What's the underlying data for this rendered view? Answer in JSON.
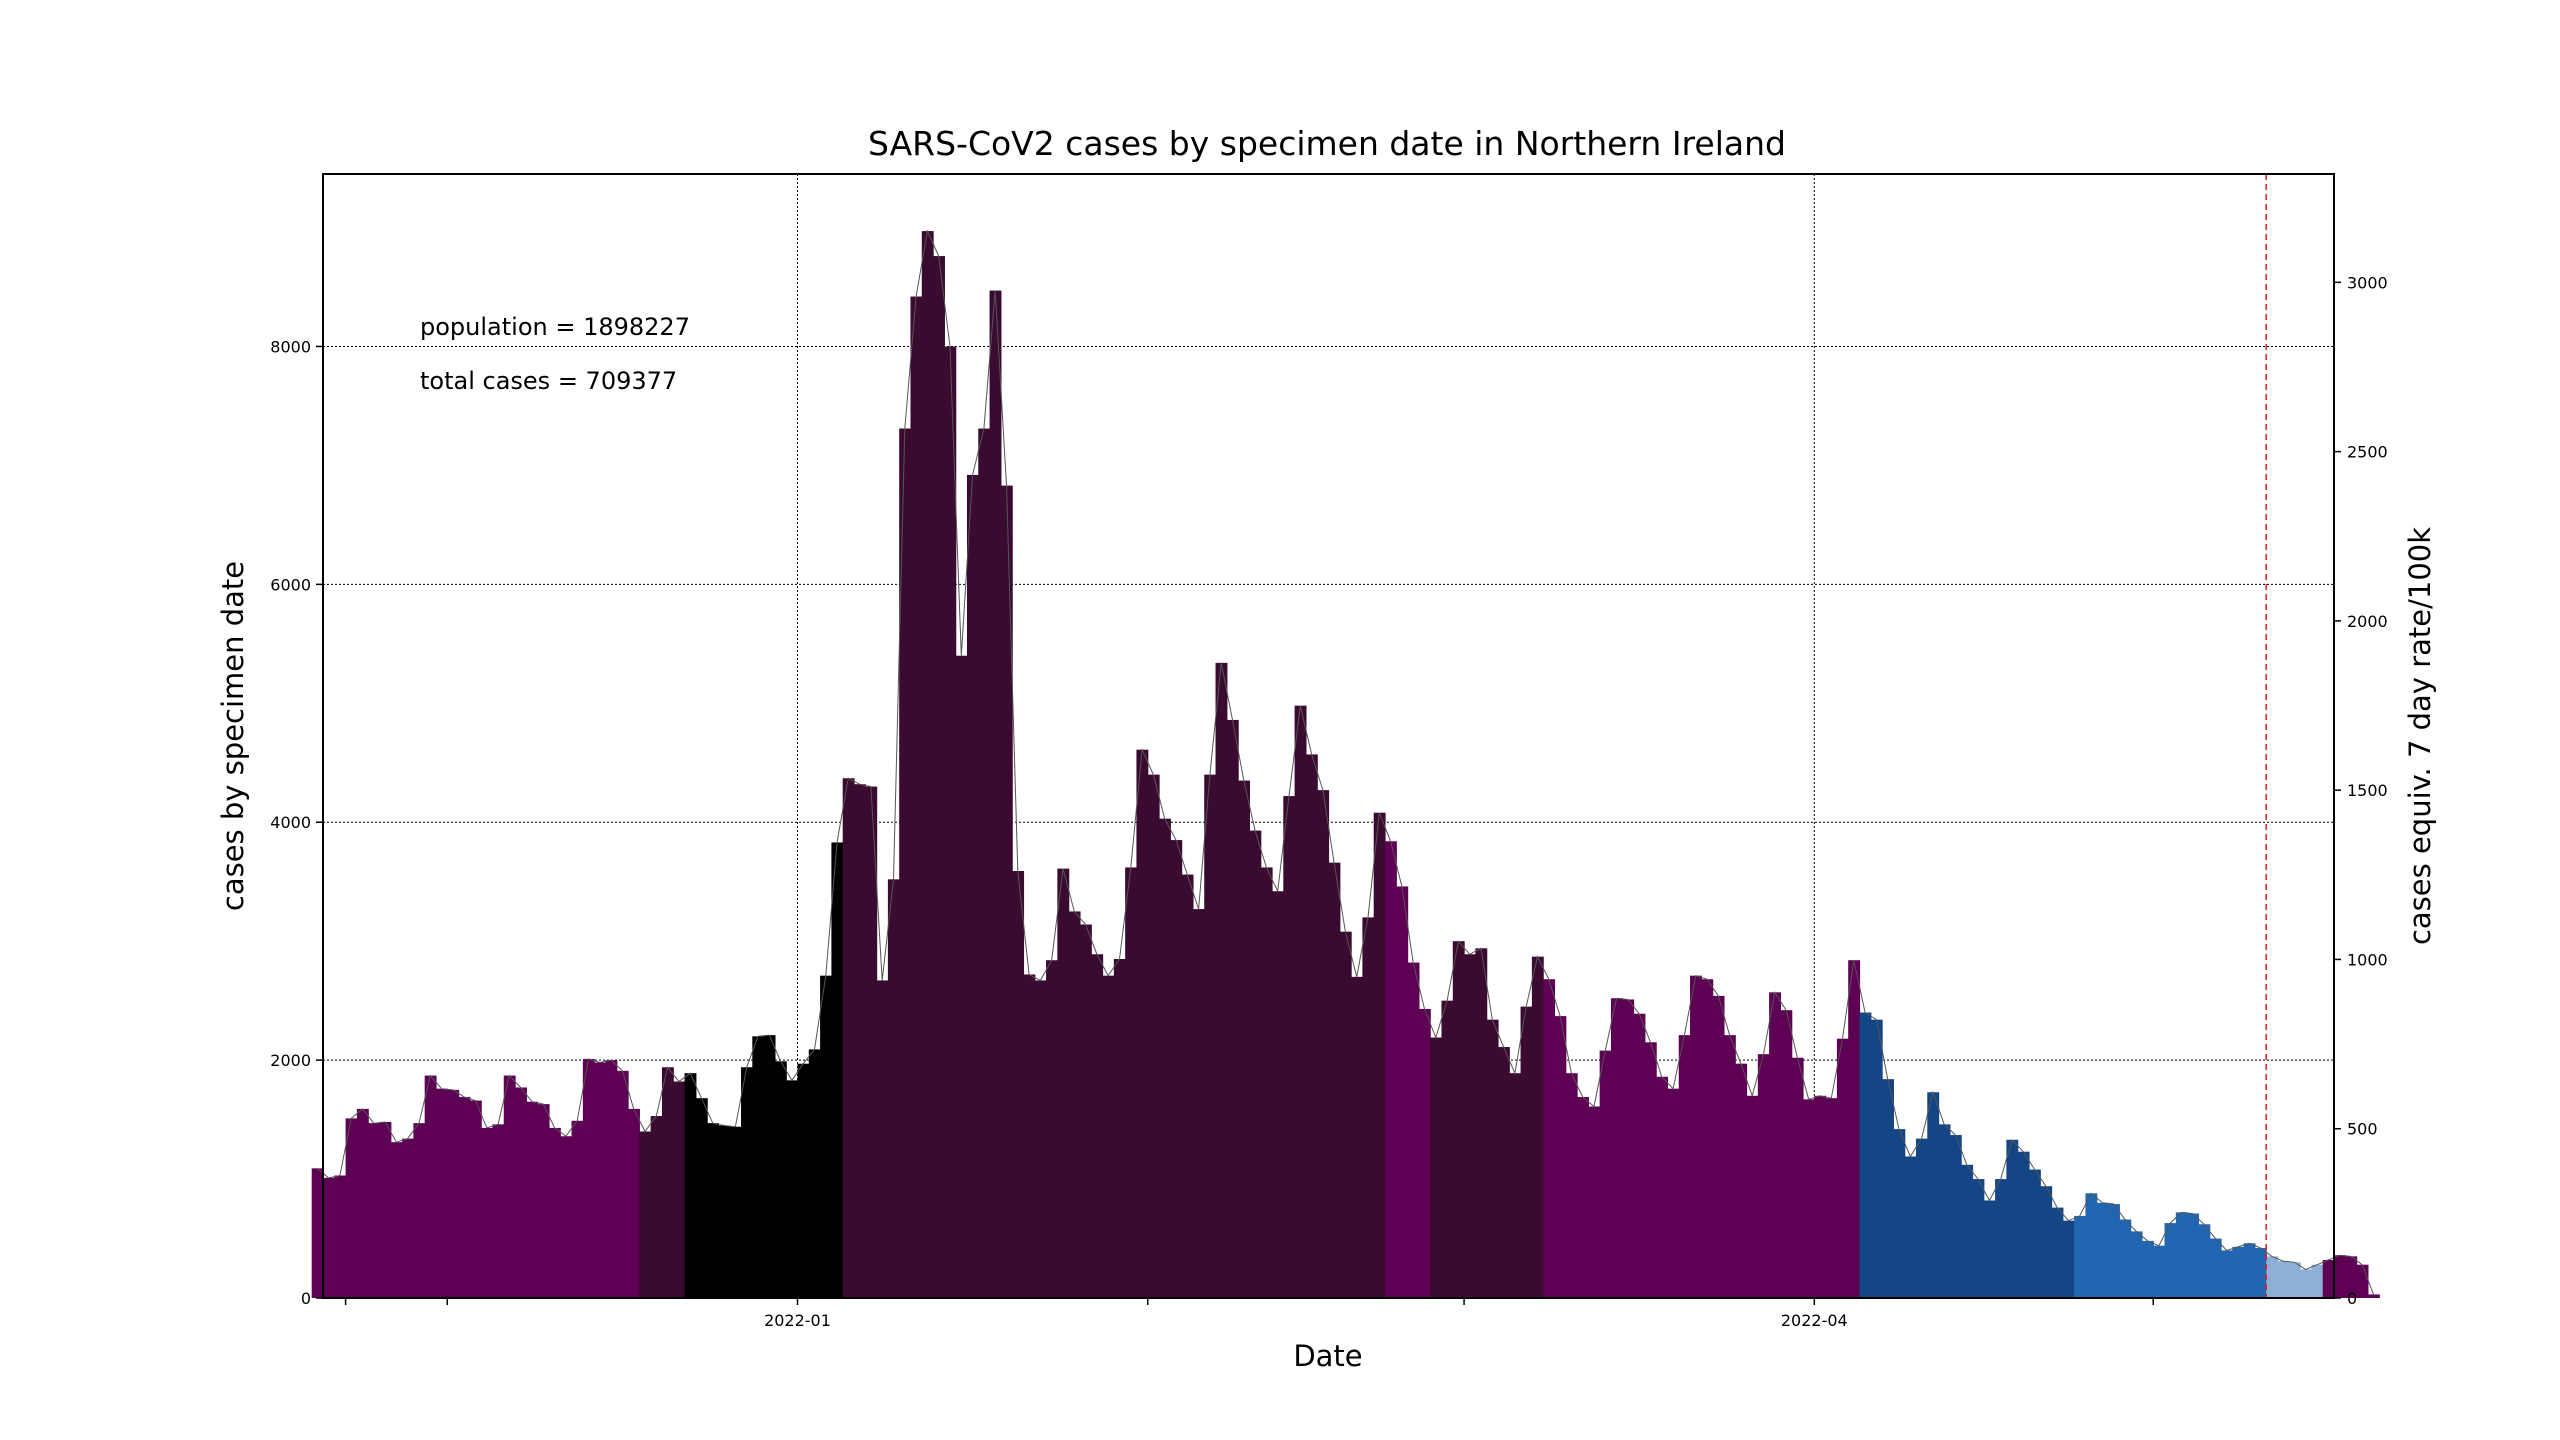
{
  "chart_data": {
    "type": "bar",
    "title": "SARS-CoV2 cases by specimen date in Northern Ireland",
    "xlabel": "Date",
    "ylabel": "cases by specimen date",
    "ylabel_right": "cases equiv. 7 day rate/100k",
    "annotations": [
      "population = 1898227",
      "total cases = 709377"
    ],
    "x_ticks": [
      {
        "date": "2021-11-22",
        "label": ""
      },
      {
        "date": "2021-12-01",
        "label": ""
      },
      {
        "date": "2022-01-01",
        "label": "2022-01"
      },
      {
        "date": "2022-02-01",
        "label": ""
      },
      {
        "date": "2022-03-01",
        "label": ""
      },
      {
        "date": "2022-04-01",
        "label": "2022-04"
      },
      {
        "date": "2022-05-01",
        "label": ""
      }
    ],
    "x_range": [
      "2021-11-20",
      "2022-05-17"
    ],
    "ylim": [
      0,
      9450
    ],
    "y_ticks": [
      0,
      2000,
      4000,
      6000,
      8000
    ],
    "y_right_ticks": [
      0,
      500,
      1000,
      1500,
      2000,
      2500,
      3000
    ],
    "y_right_lim": [
      0,
      3320
    ],
    "grid": true,
    "reference_line": {
      "date": "2022-05-11",
      "color": "#e31a1c",
      "style": "dashed"
    },
    "colors": {
      "purple": "#5e0054",
      "dark_purple": "#3a0a30",
      "black": "#000000",
      "navy": "#144686",
      "blue": "#2166b0",
      "light_blue": "#8fb0d6"
    },
    "color_bands": [
      {
        "start": "2021-11-19",
        "end": "2021-12-17",
        "color": "purple"
      },
      {
        "start": "2021-12-18",
        "end": "2021-12-21",
        "color": "dark_purple"
      },
      {
        "start": "2021-12-22",
        "end": "2022-01-04",
        "color": "black"
      },
      {
        "start": "2022-01-05",
        "end": "2022-02-21",
        "color": "dark_purple"
      },
      {
        "start": "2022-02-22",
        "end": "2022-02-25",
        "color": "purple"
      },
      {
        "start": "2022-02-26",
        "end": "2022-03-07",
        "color": "dark_purple"
      },
      {
        "start": "2022-03-08",
        "end": "2022-04-04",
        "color": "purple"
      },
      {
        "start": "2022-04-05",
        "end": "2022-04-23",
        "color": "navy"
      },
      {
        "start": "2022-04-24",
        "end": "2022-05-10",
        "color": "blue"
      },
      {
        "start": "2022-05-11",
        "end": "2022-05-15",
        "color": "light_blue"
      }
    ],
    "series": [
      {
        "start_date": "2021-11-19",
        "values": [
          1090,
          1010,
          1030,
          1510,
          1590,
          1470,
          1480,
          1310,
          1340,
          1470,
          1870,
          1760,
          1750,
          1690,
          1660,
          1430,
          1460,
          1870,
          1770,
          1650,
          1630,
          1430,
          1360,
          1490,
          2010,
          1980,
          2000,
          1910,
          1590,
          1400,
          1530,
          1940,
          1820,
          1890,
          1680,
          1470,
          1450,
          1440,
          1940,
          2200,
          2210,
          1990,
          1830,
          1970,
          2090,
          2710,
          3830,
          4370,
          4320,
          4300,
          2670,
          3520,
          7310,
          8420,
          8970,
          8760,
          8000,
          5400,
          6920,
          7310,
          8470,
          6830,
          3590,
          2720,
          2670,
          2840,
          3610,
          3250,
          3140,
          2890,
          2710,
          2850,
          3620,
          4610,
          4400,
          4030,
          3850,
          3560,
          3270,
          4400,
          5340,
          4860,
          4350,
          3930,
          3620,
          3420,
          4220,
          4980,
          4570,
          4270,
          3660,
          3080,
          2700,
          3200,
          4080,
          3840,
          3460,
          2820,
          2430,
          2190,
          2500,
          3000,
          2890,
          2940,
          2340,
          2110,
          1890,
          2450,
          2870,
          2680,
          2370,
          1890,
          1690,
          1610,
          2080,
          2520,
          2510,
          2390,
          2150,
          1860,
          1760,
          2210,
          2710,
          2680,
          2540,
          2210,
          1970,
          1700,
          2050,
          2570,
          2420,
          2020,
          1670,
          1700,
          1680,
          2180,
          2840,
          2400,
          2340,
          1840,
          1420,
          1190,
          1340,
          1730,
          1460,
          1370,
          1120,
          1000,
          820,
          1000,
          1330,
          1230,
          1080,
          940,
          760,
          650,
          690,
          880,
          800,
          790,
          660,
          560,
          480,
          440,
          630,
          720,
          710,
          620,
          500,
          400,
          430,
          460,
          420,
          350,
          310,
          300,
          240,
          280,
          320,
          360,
          350,
          280,
          30
        ]
      }
    ]
  }
}
